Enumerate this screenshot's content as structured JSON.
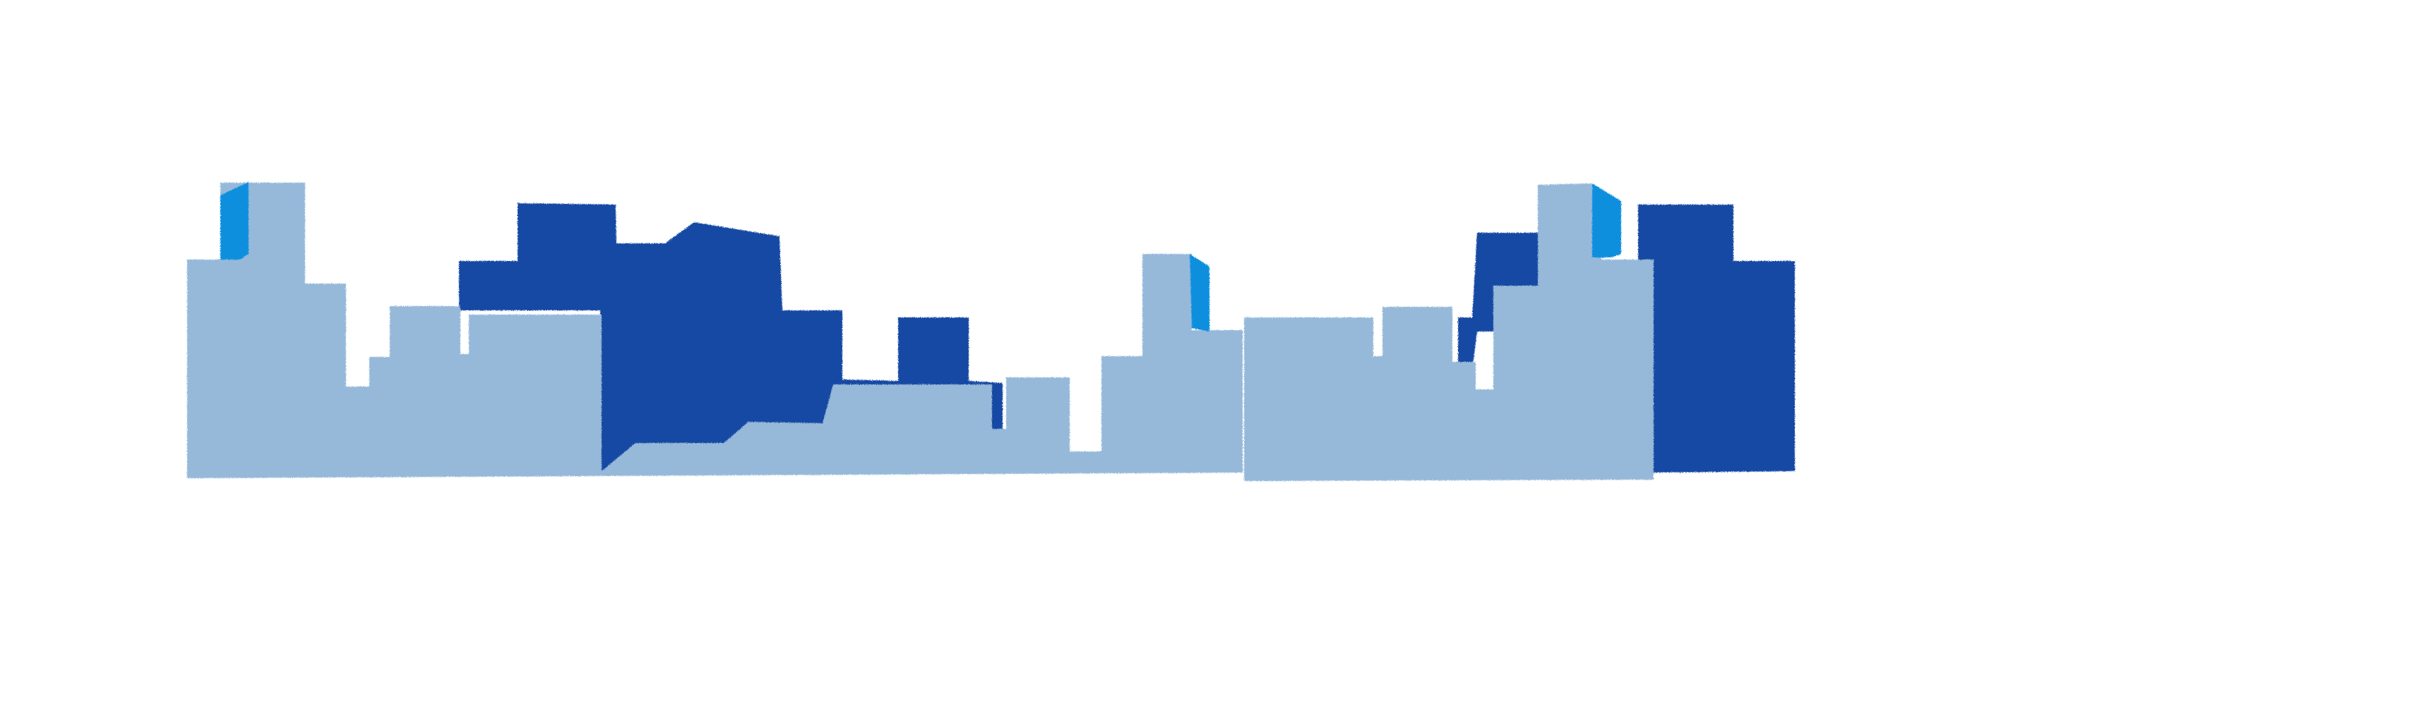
{
  "illustration": {
    "subject": "city-skyline",
    "background_color": "#ffffff",
    "colors": {
      "dark_blue": "#1448a3",
      "light_blue": "#96b9da",
      "accent_blue": "#0f8fde"
    }
  }
}
